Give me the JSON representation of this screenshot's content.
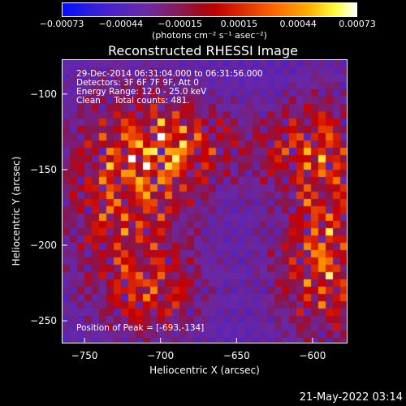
{
  "chart_data": {
    "type": "heatmap",
    "title": "Reconstructed RHESSI Image",
    "xlabel": "Heliocentric X (arcsec)",
    "ylabel": "Heliocentric Y (arcsec)",
    "xlim": [
      -765,
      -577
    ],
    "ylim": [
      -265,
      -77
    ],
    "x_ticks": [
      -750,
      -700,
      -650,
      -600
    ],
    "y_ticks": [
      -100,
      -150,
      -200,
      -250
    ],
    "x_tick_labels": [
      "−750",
      "−700",
      "−650",
      "−600"
    ],
    "y_tick_labels": [
      "−100",
      "−150",
      "−200",
      "−250"
    ],
    "colorbar": {
      "range": [
        -0.00073,
        0.00073
      ],
      "tick_labels": [
        "−0.00073",
        "−0.00044",
        "−0.00015",
        "0.00015",
        "0.00044",
        "0.00073"
      ],
      "unit": "(photons cm⁻² s⁻¹ asec⁻²)"
    },
    "annotations": {
      "time_range": "29-Dec-2014 06:31:04.000 to 06:31:56.000",
      "detectors": "Detectors: 3F 6F 7F 9F, Att 0",
      "energy_range": "Energy Range: 12.0 - 25.0 keV",
      "clean_counts": "Clean     Total counts: 481.",
      "peak": "Position of Peak = [-693,-134]"
    },
    "colors": {
      "background": "#000000",
      "low": "#0010ff",
      "mid": "#a00a1a",
      "high": "#ffffff"
    }
  },
  "footer": {
    "timestamp": "21-May-2022 03:14"
  }
}
